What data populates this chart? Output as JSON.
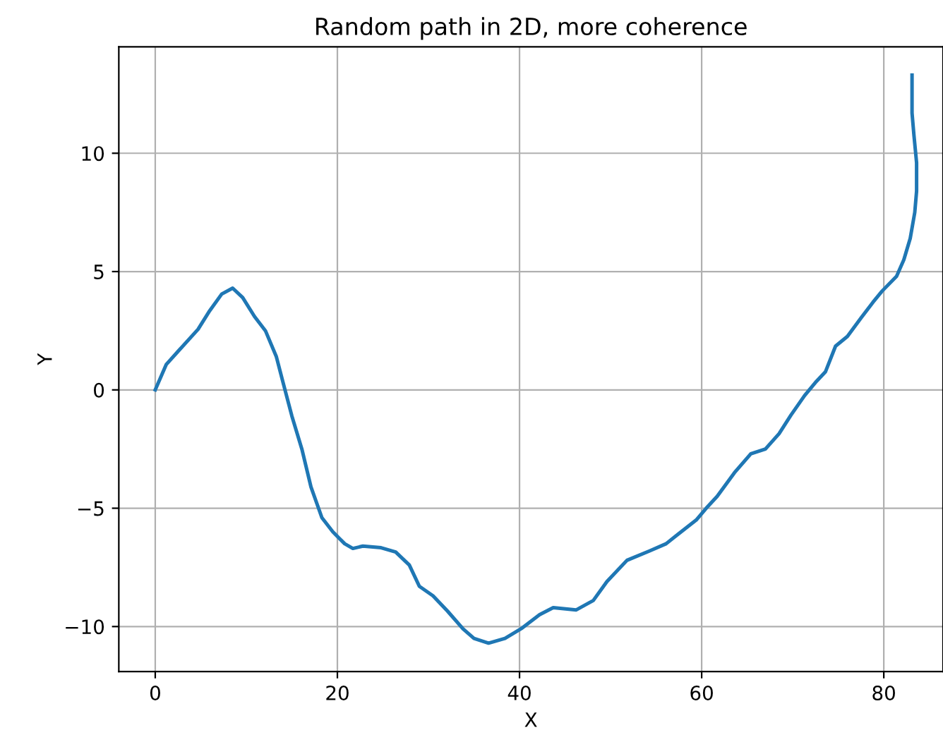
{
  "chart_data": {
    "type": "line",
    "title": "Random path in 2D, more coherence",
    "xlabel": "X",
    "ylabel": "Y",
    "series": [
      {
        "color": "#1f77b4",
        "x": [
          0,
          1.2,
          2.6,
          4.7,
          5.9,
          7.3,
          8.5,
          9.6,
          10.9,
          12.1,
          13.3,
          14.0,
          15.0,
          16.1,
          17.1,
          18.3,
          19.5,
          20.8,
          21.7,
          22.8,
          24.8,
          26.4,
          27.9,
          29.0,
          30.5,
          32.1,
          33.8,
          35.0,
          36.6,
          38.4,
          40.3,
          42.2,
          43.7,
          46.2,
          48.1,
          49.6,
          51.8,
          54.3,
          56.1,
          57.4,
          59.4,
          60.5,
          61.7,
          63.6,
          65.4,
          67.0,
          68.5,
          69.8,
          71.3,
          72.6,
          73.6,
          74.7,
          76.0,
          77.5,
          78.8,
          79.8,
          81.4,
          82.2,
          82.9,
          83.4,
          83.6,
          83.6,
          83.3,
          83.1,
          83.1
        ],
        "values": [
          0,
          1.07,
          1.67,
          2.56,
          3.3,
          4.05,
          4.3,
          3.9,
          3.1,
          2.5,
          1.4,
          0.36,
          -1.1,
          -2.5,
          -4.1,
          -5.4,
          -6.0,
          -6.5,
          -6.7,
          -6.6,
          -6.67,
          -6.85,
          -7.4,
          -8.3,
          -8.7,
          -9.35,
          -10.1,
          -10.5,
          -10.7,
          -10.5,
          -10.06,
          -9.5,
          -9.2,
          -9.3,
          -8.9,
          -8.1,
          -7.2,
          -6.8,
          -6.5,
          -6.1,
          -5.5,
          -5.0,
          -4.5,
          -3.5,
          -2.7,
          -2.5,
          -1.85,
          -1.07,
          -0.24,
          0.36,
          0.77,
          1.85,
          2.26,
          3.04,
          3.7,
          4.17,
          4.8,
          5.5,
          6.4,
          7.5,
          8.4,
          9.6,
          10.8,
          11.7,
          13.3
        ]
      }
    ],
    "xlim": [
      -4,
      86.5
    ],
    "ylim": [
      -11.9,
      14.5
    ],
    "xticks": [
      0,
      20,
      40,
      60,
      80
    ],
    "yticks": [
      {
        "value": -10,
        "label": "−10"
      },
      {
        "value": -5,
        "label": "−5"
      },
      0,
      5,
      10
    ],
    "grid": true,
    "legend": false,
    "marker": "none",
    "line_style": "solid"
  }
}
